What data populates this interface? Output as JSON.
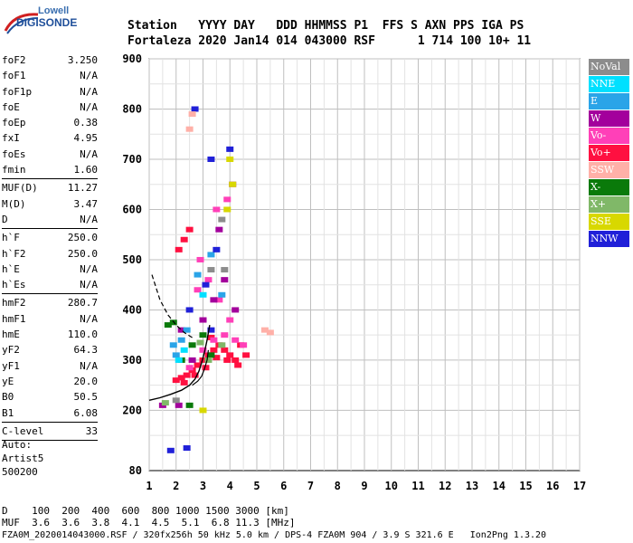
{
  "logo": {
    "line1": "Lowell",
    "line2": "DIGISONDE"
  },
  "header": {
    "labels": [
      "Station",
      "YYYY",
      "DAY",
      "DDD",
      "HHMMSS",
      "P1",
      "FFS",
      "S",
      "AXN",
      "PPS",
      "IGA",
      "PS"
    ],
    "line1": "Station   YYYY DAY   DDD HHMMSS P1  FFS S AXN PPS IGA PS",
    "line2": "Fortaleza 2020 Jan14 014 043000 RSF      1 714 100 10+ 11"
  },
  "params_group1": [
    {
      "k": "foF2",
      "v": "3.250"
    },
    {
      "k": "foF1",
      "v": "N/A"
    },
    {
      "k": "foF1p",
      "v": "N/A"
    },
    {
      "k": "foE",
      "v": "N/A"
    },
    {
      "k": "foEp",
      "v": "0.38"
    },
    {
      "k": "fxI",
      "v": "4.95"
    },
    {
      "k": "foEs",
      "v": "N/A"
    },
    {
      "k": "fmin",
      "v": "1.60"
    }
  ],
  "params_group2": [
    {
      "k": "MUF(D)",
      "v": "11.27"
    },
    {
      "k": "M(D)",
      "v": "3.47"
    },
    {
      "k": "D",
      "v": "N/A"
    }
  ],
  "params_group3": [
    {
      "k": "h`F",
      "v": "250.0"
    },
    {
      "k": "h`F2",
      "v": "250.0"
    },
    {
      "k": "h`E",
      "v": "N/A"
    },
    {
      "k": "h`Es",
      "v": "N/A"
    }
  ],
  "params_group4": [
    {
      "k": "hmF2",
      "v": "280.7"
    },
    {
      "k": "hmF1",
      "v": "N/A"
    },
    {
      "k": "hmE",
      "v": "110.0"
    },
    {
      "k": "yF2",
      "v": "64.3"
    },
    {
      "k": "yF1",
      "v": "N/A"
    },
    {
      "k": "yE",
      "v": "20.0"
    },
    {
      "k": "B0",
      "v": "50.5"
    },
    {
      "k": "B1",
      "v": "6.08"
    }
  ],
  "params_group5": [
    {
      "k": "C-level",
      "v": "33"
    }
  ],
  "auto": {
    "line1": "Auto:",
    "line2": "Artist5",
    "line3": "500200"
  },
  "legend": [
    {
      "label": "NoVal",
      "color": "#8c8c8c"
    },
    {
      "label": "NNE",
      "color": "#00e0ff"
    },
    {
      "label": "E",
      "color": "#2aa4e8"
    },
    {
      "label": "W",
      "color": "#a3009c"
    },
    {
      "label": "Vo-",
      "color": "#ff40b8"
    },
    {
      "label": "Vo+",
      "color": "#ff1040"
    },
    {
      "label": "SSW",
      "color": "#ffb0a8"
    },
    {
      "label": "X-",
      "color": "#0a7a0a"
    },
    {
      "label": "X+",
      "color": "#80b868"
    },
    {
      "label": "SSE",
      "color": "#d8d800"
    },
    {
      "label": "NNW",
      "color": "#2020d8"
    }
  ],
  "footer": {
    "line1": "D    100  200  400  600  800 1000 1500 3000 [km]",
    "line2": "MUF  3.6  3.6  3.8  4.1  4.5  5.1  6.8 11.3 [MHz]",
    "line3": "FZA0M_2020014043000.RSF / 320fx256h 50 kHz 5.0 km / DPS-4 FZA0M 904 / 3.9 S 321.6 E   Ion2Png 1.3.20"
  },
  "chart_data": {
    "type": "scatter",
    "xlim": [
      1,
      17
    ],
    "ylim": [
      80,
      900
    ],
    "xticks": [
      1,
      2,
      3,
      4,
      5,
      6,
      7,
      8,
      9,
      10,
      11,
      12,
      13,
      14,
      15,
      16,
      17
    ],
    "yticks": [
      80,
      200,
      300,
      400,
      500,
      600,
      700,
      800,
      900
    ],
    "grid": true,
    "legend_position": "right",
    "series": [
      {
        "name": "Vo+",
        "color": "#ff1040",
        "points": [
          [
            2.0,
            260
          ],
          [
            2.2,
            265
          ],
          [
            2.4,
            270
          ],
          [
            2.6,
            280
          ],
          [
            2.8,
            290
          ],
          [
            3.0,
            300
          ],
          [
            3.2,
            310
          ],
          [
            3.4,
            320
          ],
          [
            3.6,
            330
          ],
          [
            3.8,
            320
          ],
          [
            4.0,
            310
          ],
          [
            4.2,
            300
          ],
          [
            2.3,
            255
          ],
          [
            2.7,
            270
          ],
          [
            3.1,
            285
          ],
          [
            3.5,
            305
          ],
          [
            3.9,
            300
          ],
          [
            4.3,
            290
          ],
          [
            4.6,
            310
          ],
          [
            2.1,
            520
          ],
          [
            2.3,
            540
          ],
          [
            2.5,
            560
          ],
          [
            3.3,
            345
          ],
          [
            4.4,
            330
          ]
        ]
      },
      {
        "name": "Vo-",
        "color": "#ff40b8",
        "points": [
          [
            2.5,
            285
          ],
          [
            3.0,
            320
          ],
          [
            3.4,
            340
          ],
          [
            3.8,
            350
          ],
          [
            4.2,
            340
          ],
          [
            4.5,
            330
          ],
          [
            2.8,
            440
          ],
          [
            3.2,
            460
          ],
          [
            3.6,
            420
          ],
          [
            4.0,
            380
          ],
          [
            3.5,
            600
          ],
          [
            3.9,
            620
          ],
          [
            2.9,
            500
          ]
        ]
      },
      {
        "name": "W",
        "color": "#a3009c",
        "points": [
          [
            3.0,
            380
          ],
          [
            3.4,
            420
          ],
          [
            3.8,
            460
          ],
          [
            4.2,
            400
          ],
          [
            2.6,
            300
          ],
          [
            3.6,
            560
          ],
          [
            4.1,
            650
          ],
          [
            2.2,
            360
          ],
          [
            2.1,
            210
          ],
          [
            1.5,
            210
          ]
        ]
      },
      {
        "name": "X-",
        "color": "#0a7a0a",
        "points": [
          [
            1.7,
            370
          ],
          [
            1.9,
            375
          ],
          [
            2.6,
            330
          ],
          [
            3.0,
            350
          ],
          [
            3.3,
            310
          ],
          [
            2.2,
            300
          ],
          [
            2.5,
            210
          ]
        ]
      },
      {
        "name": "X+",
        "color": "#80b868",
        "points": [
          [
            2.9,
            335
          ],
          [
            3.2,
            300
          ],
          [
            3.7,
            330
          ],
          [
            1.6,
            215
          ]
        ]
      },
      {
        "name": "E",
        "color": "#2aa4e8",
        "points": [
          [
            1.9,
            330
          ],
          [
            2.0,
            310
          ],
          [
            2.2,
            340
          ],
          [
            2.4,
            360
          ],
          [
            3.7,
            430
          ],
          [
            3.3,
            510
          ],
          [
            2.8,
            470
          ]
        ]
      },
      {
        "name": "NNE",
        "color": "#00e0ff",
        "points": [
          [
            2.1,
            300
          ],
          [
            2.3,
            320
          ],
          [
            3.0,
            430
          ]
        ]
      },
      {
        "name": "NNW",
        "color": "#2020d8",
        "points": [
          [
            2.5,
            400
          ],
          [
            3.1,
            450
          ],
          [
            3.3,
            700
          ],
          [
            3.5,
            520
          ],
          [
            4.0,
            720
          ],
          [
            1.8,
            120
          ],
          [
            2.4,
            125
          ],
          [
            2.7,
            800
          ],
          [
            3.3,
            360
          ]
        ]
      },
      {
        "name": "SSE",
        "color": "#d8d800",
        "points": [
          [
            3.9,
            600
          ],
          [
            4.1,
            650
          ],
          [
            4.0,
            700
          ],
          [
            3.0,
            200
          ]
        ]
      },
      {
        "name": "SSW",
        "color": "#ffb0a8",
        "points": [
          [
            5.3,
            360
          ],
          [
            5.5,
            355
          ],
          [
            2.5,
            760
          ],
          [
            2.6,
            790
          ]
        ]
      },
      {
        "name": "NoVal",
        "color": "#8c8c8c",
        "points": [
          [
            3.7,
            580
          ],
          [
            3.3,
            480
          ],
          [
            2.0,
            220
          ],
          [
            3.8,
            480
          ]
        ]
      }
    ],
    "profile_curve": {
      "color": "#000000",
      "x": [
        1.0,
        1.4,
        1.8,
        2.2,
        2.5,
        2.7,
        2.85,
        2.95,
        3.05,
        3.15,
        3.25
      ],
      "y": [
        220,
        225,
        232,
        240,
        250,
        262,
        278,
        295,
        315,
        340,
        370
      ]
    },
    "trace_curve_solid": {
      "color": "#000000",
      "x": [
        2.6,
        2.8,
        2.95,
        3.05,
        3.15,
        3.2
      ],
      "y": [
        250,
        258,
        268,
        282,
        300,
        320
      ]
    },
    "trace_curve_dashed": {
      "color": "#000000",
      "x": [
        1.1,
        1.4,
        1.7,
        2.0,
        2.3,
        2.6
      ],
      "y": [
        470,
        420,
        390,
        370,
        355,
        345
      ]
    }
  }
}
